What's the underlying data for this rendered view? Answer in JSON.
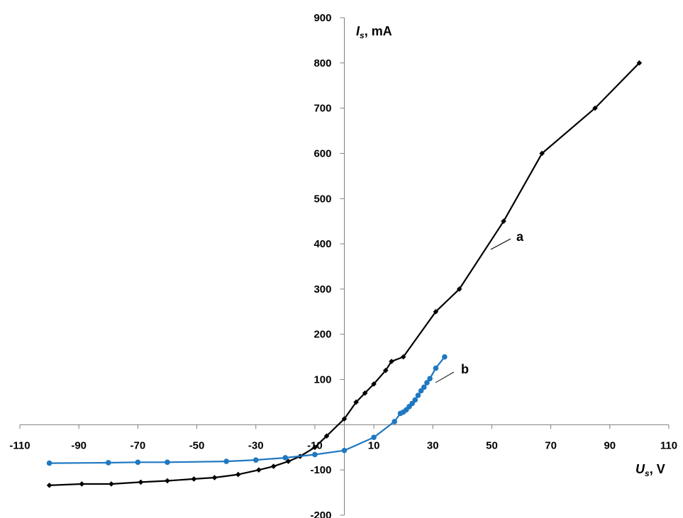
{
  "chart_data": {
    "type": "line",
    "title": "",
    "xlabel": {
      "symbol": "U",
      "subscript": "s",
      "unit": ", V"
    },
    "ylabel": {
      "symbol": "I",
      "subscript": "s",
      "unit": ", mA"
    },
    "xlim": [
      -110,
      110
    ],
    "ylim": [
      -200,
      900
    ],
    "xticks": [
      -110,
      -90,
      -70,
      -50,
      -30,
      -10,
      10,
      30,
      50,
      70,
      90,
      110
    ],
    "yticks": [
      -200,
      -100,
      0,
      100,
      200,
      300,
      400,
      500,
      600,
      700,
      800,
      900
    ],
    "grid": false,
    "legend": "none",
    "series": [
      {
        "name": "a",
        "color": "#000000",
        "marker": "diamond",
        "points": [
          [
            -100,
            -134
          ],
          [
            -89,
            -131
          ],
          [
            -79,
            -131
          ],
          [
            -69,
            -127
          ],
          [
            -60,
            -124
          ],
          [
            -51,
            -120
          ],
          [
            -44,
            -117
          ],
          [
            -36,
            -110
          ],
          [
            -29,
            -100
          ],
          [
            -24,
            -92
          ],
          [
            -19,
            -81
          ],
          [
            -15,
            -70
          ],
          [
            -10,
            -50
          ],
          [
            -6,
            -25
          ],
          [
            0,
            13
          ],
          [
            4,
            50
          ],
          [
            7,
            70
          ],
          [
            10,
            90
          ],
          [
            14,
            120
          ],
          [
            16,
            140
          ],
          [
            20,
            150
          ],
          [
            31,
            250
          ],
          [
            39,
            300
          ],
          [
            54,
            450
          ],
          [
            67,
            600
          ],
          [
            85,
            700
          ],
          [
            100,
            800
          ]
        ]
      },
      {
        "name": "b",
        "color": "#1f78c1",
        "marker": "circle",
        "points": [
          [
            -100,
            -85
          ],
          [
            -80,
            -84
          ],
          [
            -70,
            -83
          ],
          [
            -60,
            -83
          ],
          [
            -40,
            -81
          ],
          [
            -30,
            -78
          ],
          [
            -20,
            -73
          ],
          [
            -10,
            -66
          ],
          [
            0,
            -57
          ],
          [
            10,
            -28
          ],
          [
            17,
            7
          ],
          [
            19,
            25
          ],
          [
            20,
            28
          ],
          [
            21,
            33
          ],
          [
            22,
            40
          ],
          [
            23,
            47
          ],
          [
            24,
            55
          ],
          [
            25,
            65
          ],
          [
            26,
            75
          ],
          [
            27,
            83
          ],
          [
            28,
            93
          ],
          [
            29,
            102
          ],
          [
            31,
            125
          ],
          [
            34,
            150
          ]
        ]
      }
    ],
    "annotations": [
      {
        "text": "a",
        "series": "a"
      },
      {
        "text": "b",
        "series": "b"
      }
    ]
  }
}
